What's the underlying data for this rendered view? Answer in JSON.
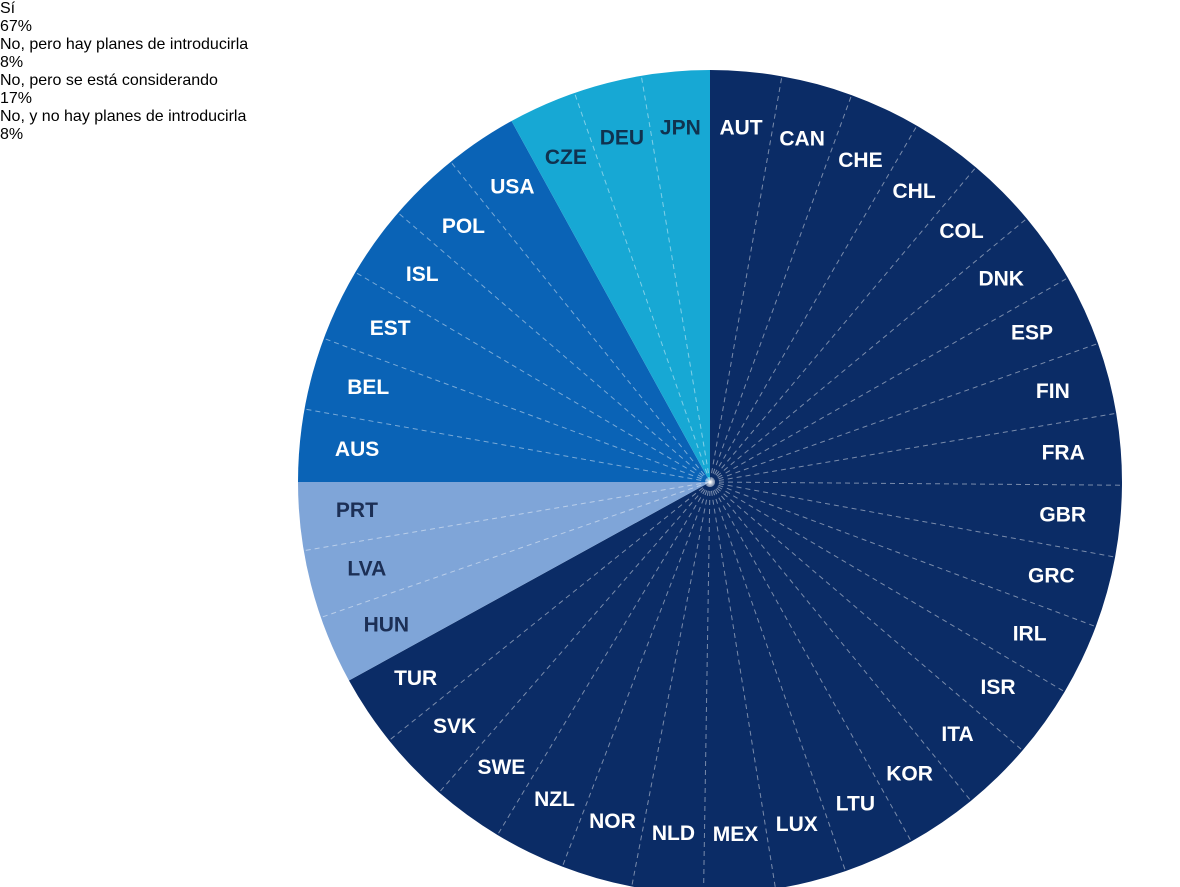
{
  "chart_data": {
    "type": "pie",
    "series": [
      {
        "name": "Sí",
        "value": 67,
        "value_label": "67%",
        "color": "#0b2c66",
        "text_color": "#ffffff",
        "countries": [
          "AUT",
          "CAN",
          "CHE",
          "CHL",
          "COL",
          "DNK",
          "ESP",
          "FIN",
          "FRA",
          "GBR",
          "GRC",
          "IRL",
          "ISR",
          "ITA",
          "KOR",
          "LTU",
          "LUX",
          "MEX",
          "NLD",
          "NOR",
          "NZL",
          "SWE",
          "SVK",
          "TUR"
        ]
      },
      {
        "name": "No, pero hay planes de introducirla",
        "value": 8,
        "value_label": "8%",
        "color": "#7fa5d8",
        "text_color": "#1c2f55",
        "countries": [
          "HUN",
          "LVA",
          "PRT"
        ]
      },
      {
        "name": "No, pero se está considerando",
        "value": 17,
        "value_label": "17%",
        "color": "#0a63b6",
        "text_color": "#ffffff",
        "countries": [
          "AUS",
          "BEL",
          "EST",
          "ISL",
          "POL",
          "USA"
        ]
      },
      {
        "name": "No, y no hay planes de introducirla",
        "value": 8,
        "value_label": "8%",
        "color": "#17a8d4",
        "text_color": "#10324f",
        "countries": [
          "CZE",
          "DEU",
          "JPN"
        ]
      }
    ]
  }
}
